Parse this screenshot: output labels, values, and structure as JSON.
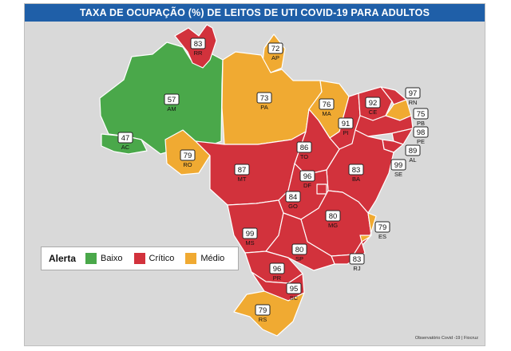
{
  "title": "TAXA DE OCUPAÇÃO (%) DE LEITOS DE UTI COVID-19 PARA ADULTOS",
  "credit": "Observatório Covid -19 | Fiocruz",
  "legend": {
    "title": "Alerta",
    "items": [
      {
        "label": "Baixo",
        "color": "#4aa84a"
      },
      {
        "label": "Crítico",
        "color": "#d2323c"
      },
      {
        "label": "Médio",
        "color": "#f0aa32"
      }
    ]
  },
  "states": [
    {
      "uf": "RR",
      "value": "83",
      "alert": "Crítico"
    },
    {
      "uf": "AP",
      "value": "72",
      "alert": "Médio"
    },
    {
      "uf": "AM",
      "value": "57",
      "alert": "Baixo"
    },
    {
      "uf": "PA",
      "value": "73",
      "alert": "Médio"
    },
    {
      "uf": "MA",
      "value": "76",
      "alert": "Médio"
    },
    {
      "uf": "CE",
      "value": "92",
      "alert": "Crítico"
    },
    {
      "uf": "RN",
      "value": "97",
      "alert": "Crítico"
    },
    {
      "uf": "PB",
      "value": "75",
      "alert": "Médio"
    },
    {
      "uf": "PE",
      "value": "98",
      "alert": "Crítico"
    },
    {
      "uf": "AL",
      "value": "89",
      "alert": "Crítico"
    },
    {
      "uf": "SE",
      "value": "99",
      "alert": "Crítico"
    },
    {
      "uf": "PI",
      "value": "91",
      "alert": "Crítico"
    },
    {
      "uf": "AC",
      "value": "47",
      "alert": "Baixo"
    },
    {
      "uf": "RO",
      "value": "79",
      "alert": "Médio"
    },
    {
      "uf": "TO",
      "value": "86",
      "alert": "Crítico"
    },
    {
      "uf": "MT",
      "value": "87",
      "alert": "Crítico"
    },
    {
      "uf": "BA",
      "value": "83",
      "alert": "Crítico"
    },
    {
      "uf": "DF",
      "value": "96",
      "alert": "Crítico"
    },
    {
      "uf": "GO",
      "value": "84",
      "alert": "Crítico"
    },
    {
      "uf": "MG",
      "value": "80",
      "alert": "Crítico"
    },
    {
      "uf": "ES",
      "value": "79",
      "alert": "Médio"
    },
    {
      "uf": "MS",
      "value": "99",
      "alert": "Crítico"
    },
    {
      "uf": "SP",
      "value": "80",
      "alert": "Crítico"
    },
    {
      "uf": "RJ",
      "value": "83",
      "alert": "Crítico"
    },
    {
      "uf": "PR",
      "value": "96",
      "alert": "Crítico"
    },
    {
      "uf": "SC",
      "value": "95",
      "alert": "Crítico"
    },
    {
      "uf": "RS",
      "value": "79",
      "alert": "Médio"
    }
  ]
}
